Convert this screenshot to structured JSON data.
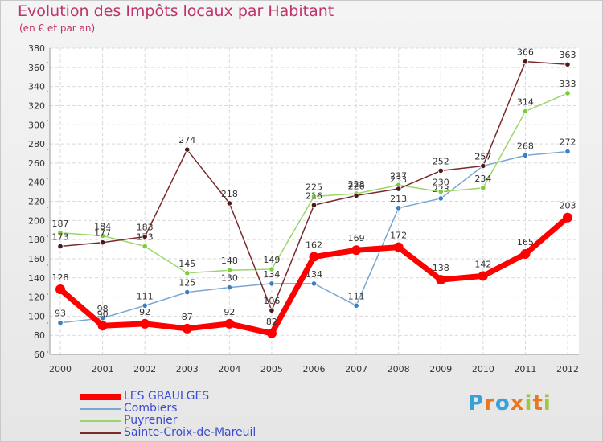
{
  "header": {
    "title": "Evolution des Impôts locaux par Habitant",
    "subtitle": "(en € et par an)"
  },
  "logo": {
    "text": "Proxiti",
    "colors": [
      "#3aa0d8",
      "#e8781e",
      "#3aa0d8",
      "#e8781e",
      "#9bc83c",
      "#e8781e",
      "#9bc83c"
    ]
  },
  "chart_data": {
    "type": "line",
    "title": "Evolution des Impôts locaux par Habitant",
    "subtitle": "(en € et par an)",
    "xlabel": "",
    "ylabel": "",
    "x": [
      "2000",
      "2001",
      "2002",
      "2003",
      "2004",
      "2005",
      "2006",
      "2007",
      "2008",
      "2009",
      "2010",
      "2011",
      "2012"
    ],
    "ylim": [
      60,
      380
    ],
    "yticks": [
      60,
      80,
      100,
      120,
      140,
      160,
      180,
      200,
      220,
      240,
      260,
      280,
      300,
      320,
      340,
      360,
      380
    ],
    "grid": true,
    "legend_position": "bottom-left",
    "series": [
      {
        "name": "LES GRAULGES",
        "color": "#ff0000",
        "marker_color": "#ff0000",
        "emphasis": true,
        "values": [
          128,
          90,
          92,
          87,
          92,
          82,
          162,
          169,
          172,
          138,
          142,
          165,
          203
        ]
      },
      {
        "name": "Combiers",
        "color": "#7aa6d4",
        "marker_color": "#3a7fc4",
        "emphasis": false,
        "values": [
          93,
          98,
          111,
          125,
          130,
          134,
          134,
          111,
          213,
          223,
          257,
          268,
          272
        ]
      },
      {
        "name": "Puyrenier",
        "color": "#9cd66a",
        "marker_color": "#7ccc3a",
        "emphasis": false,
        "values": [
          187,
          184,
          173,
          145,
          148,
          149,
          225,
          228,
          237,
          230,
          234,
          314,
          333
        ]
      },
      {
        "name": "Sainte-Croix-de-Mareuil",
        "color": "#7a2a2a",
        "marker_color": "#4a1a1a",
        "emphasis": false,
        "values": [
          173,
          177,
          183,
          274,
          218,
          106,
          216,
          226,
          233,
          252,
          257,
          366,
          363
        ]
      }
    ]
  }
}
